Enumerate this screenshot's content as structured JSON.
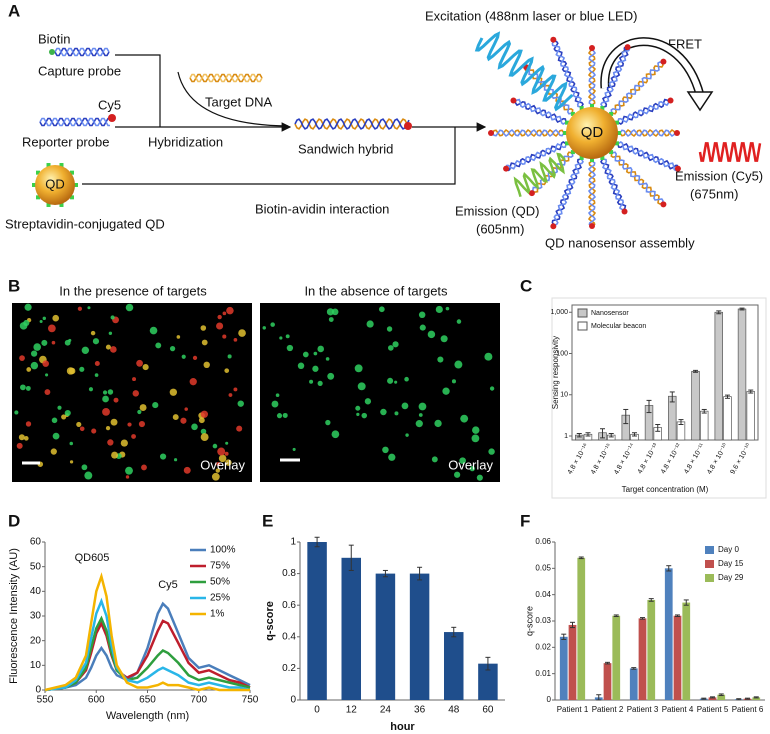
{
  "diagram": {
    "label": "A",
    "biotin": "Biotin",
    "capture_probe": "Capture probe",
    "cy5": "Cy5",
    "reporter_probe": "Reporter probe",
    "target_dna": "Target DNA",
    "hybridization": "Hybridization",
    "sandwich_hybrid": "Sandwich hybrid",
    "qd": "QD",
    "streptavidin_qd": "Streptavidin-conjugated QD",
    "biotin_avidin": "Biotin-avidin interaction",
    "excitation": "Excitation (488nm laser or blue LED)",
    "fret": "FRET",
    "qd_center": "QD",
    "emission_cy5": "Emission (Cy5)",
    "emission_cy5_nm": "(675nm)",
    "emission_qd": "Emission (QD)",
    "emission_qd_nm": "(605nm)",
    "assembly": "QD nanosensor assembly"
  },
  "images": {
    "label": "B",
    "titles": [
      "In the presence of targets",
      "In the absence of targets"
    ],
    "overlays": [
      "Overlay",
      "Overlay"
    ]
  },
  "chart_data": [
    {
      "type": "bar",
      "label": "C",
      "ylabel": "Sensing responsivity",
      "xlabel": "Target concentration (M)",
      "log_scale": true,
      "ylim": [
        0.8,
        1500
      ],
      "yticks": [
        1,
        10,
        100,
        {
          "value": 1000,
          "label": "1,000"
        }
      ],
      "legend": "top-left",
      "categories": [
        "4.8 × 10⁻¹⁶",
        "4.8 × 10⁻¹⁵",
        "4.8 × 10⁻¹⁴",
        "4.8 × 10⁻¹³",
        "4.8 × 10⁻¹²",
        "4.8 × 10⁻¹¹",
        "4.8 × 10⁻¹⁰",
        "9.6 × 10⁻¹⁰"
      ],
      "series": [
        {
          "name": "Nanosensor",
          "color": "#c8c8c8",
          "values": [
            1.05,
            1.2,
            3.2,
            5.5,
            9.2,
            37,
            1000,
            1200
          ],
          "errors": [
            0.1,
            0.3,
            1.2,
            1.8,
            2.5,
            2,
            80,
            60
          ]
        },
        {
          "name": "Molecular beacon",
          "color": "#ffffff",
          "values": [
            1.1,
            1.05,
            1.1,
            1.6,
            2.2,
            4,
            9,
            12
          ],
          "errors": [
            0.1,
            0.1,
            0.1,
            0.3,
            0.3,
            0.4,
            0.8,
            1
          ]
        }
      ]
    },
    {
      "type": "line",
      "label": "D",
      "ylabel": "Fluorescence Intensity (AU)",
      "xlabel": "Wavelength (nm)",
      "xlim": [
        550,
        750
      ],
      "xticks": [
        550,
        600,
        650,
        700,
        750
      ],
      "ylim": [
        0,
        60
      ],
      "yticks": [
        0,
        10,
        20,
        30,
        40,
        50,
        60
      ],
      "legend": "top-right",
      "annotations": [
        "QD605",
        "Cy5"
      ],
      "x": [
        550,
        570,
        580,
        590,
        595,
        600,
        605,
        610,
        615,
        620,
        630,
        640,
        650,
        660,
        665,
        670,
        680,
        690,
        700,
        710,
        720,
        730,
        740,
        750
      ],
      "series": [
        {
          "name": "100%",
          "color": "#4a7ebb",
          "values": [
            0,
            1,
            2,
            5,
            9,
            14,
            17,
            14,
            9,
            6,
            4,
            7,
            17,
            31,
            35,
            33,
            23,
            13,
            9,
            10,
            8,
            6,
            4,
            2
          ]
        },
        {
          "name": "75%",
          "color": "#be1e2d",
          "values": [
            0,
            1,
            3,
            8,
            15,
            23,
            27,
            22,
            14,
            8,
            5,
            7,
            14,
            24,
            28,
            27,
            19,
            11,
            7,
            8,
            6,
            4,
            3,
            1
          ]
        },
        {
          "name": "50%",
          "color": "#2e9e3e",
          "values": [
            0,
            1,
            3,
            9,
            17,
            25,
            29,
            24,
            15,
            8,
            4,
            5,
            9,
            14,
            16,
            15,
            11,
            6,
            4,
            5,
            4,
            3,
            2,
            1
          ]
        },
        {
          "name": "25%",
          "color": "#29b6e8",
          "values": [
            0,
            1,
            4,
            11,
            21,
            31,
            36,
            30,
            18,
            9,
            4,
            3,
            5,
            8,
            9,
            8,
            6,
            3,
            2,
            3,
            2,
            1,
            1,
            0
          ]
        },
        {
          "name": "1%",
          "color": "#f4b400",
          "values": [
            0,
            2,
            5,
            14,
            27,
            40,
            46,
            38,
            22,
            10,
            3,
            1,
            1,
            2,
            3,
            2,
            2,
            1,
            0,
            1,
            0,
            0,
            0,
            0
          ]
        }
      ]
    },
    {
      "type": "bar",
      "label": "E",
      "ylabel": "q-score",
      "xlabel": "hour",
      "ylim": [
        0,
        1
      ],
      "yticks": [
        0,
        0.2,
        0.4,
        0.6,
        0.8,
        1
      ],
      "categories": [
        "0",
        "12",
        "24",
        "36",
        "48",
        "60"
      ],
      "values": [
        1,
        0.9,
        0.8,
        0.8,
        0.43,
        0.23
      ],
      "errors": [
        0.03,
        0.08,
        0.02,
        0.04,
        0.03,
        0.04
      ],
      "color": "#1f4e8c"
    },
    {
      "type": "bar",
      "label": "F",
      "ylabel": "q-score",
      "ylim": [
        0,
        0.06
      ],
      "yticks": [
        0,
        0.01,
        0.02,
        0.03,
        0.04,
        0.05,
        0.06
      ],
      "legend": "top-right",
      "categories": [
        "Patient 1",
        "Patient 2",
        "Patient 3",
        "Patient 4",
        "Patient 5",
        "Patient 6"
      ],
      "series": [
        {
          "name": "Day 0",
          "color": "#4f81bd",
          "values": [
            0.024,
            0.001,
            0.012,
            0.05,
            0.0005,
            0.0003
          ],
          "errors": [
            0.001,
            0.001,
            0.0003,
            0.001,
            0.0002,
            0.0002
          ]
        },
        {
          "name": "Day 15",
          "color": "#c0504d",
          "values": [
            0.0285,
            0.014,
            0.031,
            0.032,
            0.001,
            0.0005
          ],
          "errors": [
            0.001,
            0.0003,
            0.0003,
            0.0003,
            0.0002,
            0.0002
          ]
        },
        {
          "name": "Day 29",
          "color": "#9bbb59",
          "values": [
            0.054,
            0.032,
            0.038,
            0.037,
            0.002,
            0.001
          ],
          "errors": [
            0.0003,
            0.0003,
            0.0005,
            0.001,
            0.0003,
            0.0002
          ]
        }
      ]
    }
  ]
}
